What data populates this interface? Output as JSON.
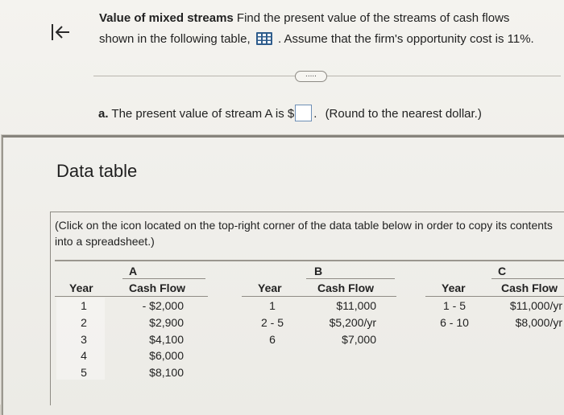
{
  "question": {
    "title": "Value of mixed streams",
    "line1_rest": "Find the present value of the streams of cash flows",
    "line2_start": "shown in the following table,",
    "line2_end": ". Assume that the firm's opportunity cost is 11%.",
    "table_icon": "spreadsheet-grid-icon",
    "back_icon": "collapse-left-arrow-icon",
    "more_label": "....."
  },
  "part_a": {
    "label": "a.",
    "text_before": "The present value of stream A is $",
    "input_value": "",
    "text_after": ".",
    "hint": "(Round to the nearest dollar.)"
  },
  "modal": {
    "title": "Data table",
    "instructions": "(Click on the icon located on the top-right corner of the data table below in order to copy its contents into a spreadsheet.)"
  },
  "streams": [
    {
      "name": "A",
      "year_header": "Year",
      "flow_header": "Cash Flow",
      "years": [
        "1",
        "2",
        "3",
        "4",
        "5"
      ],
      "flows": [
        "- $2,000",
        "$2,900",
        "$4,100",
        "$6,000",
        "$8,100"
      ]
    },
    {
      "name": "B",
      "year_header": "Year",
      "flow_header": "Cash Flow",
      "years": [
        "1",
        "2 - 5",
        "6"
      ],
      "flows": [
        "$11,000",
        "$5,200/yr",
        "$7,000"
      ]
    },
    {
      "name": "C",
      "year_header": "Year",
      "flow_header": "Cash Flow",
      "years": [
        "1 - 5",
        "6 - 10"
      ],
      "flows": [
        "$11,000/yr",
        "$8,000/yr"
      ]
    }
  ],
  "colors": {
    "page_background": "#f2f1ed",
    "input_border": "#6e8fb5",
    "rule_lines": "#8f8c85"
  }
}
